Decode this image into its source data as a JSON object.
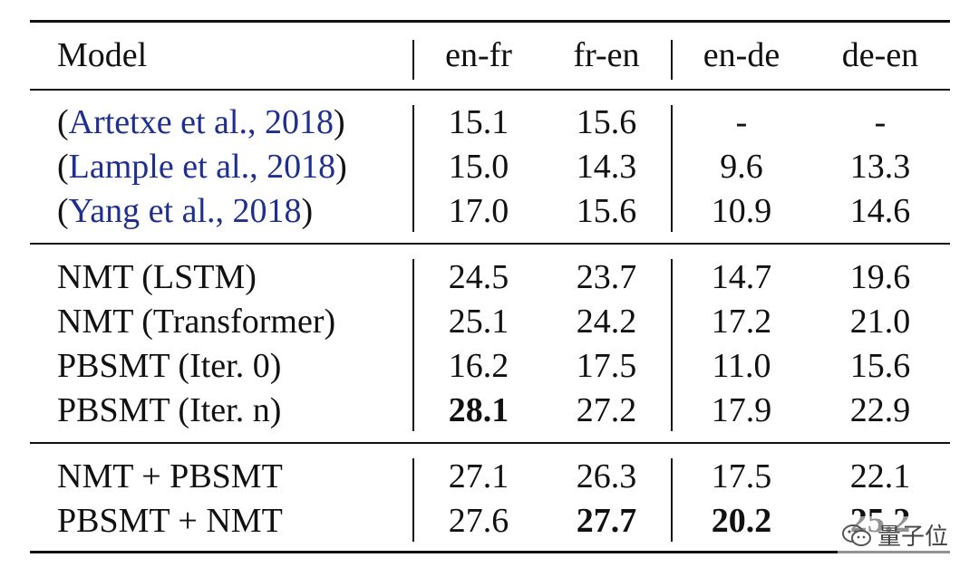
{
  "table": {
    "header": {
      "model": "Model",
      "columns": [
        "en-fr",
        "fr-en",
        "en-de",
        "de-en"
      ]
    },
    "groups": [
      {
        "rows": [
          {
            "prefix": "(",
            "model": "Artetxe et al., 2018",
            "suffix": ")",
            "values": [
              "15.1",
              "15.6",
              "-",
              "-"
            ]
          },
          {
            "prefix": "(",
            "model": "Lample et al., 2018",
            "suffix": ")",
            "values": [
              "15.0",
              "14.3",
              "9.6",
              "13.3"
            ]
          },
          {
            "prefix": "(",
            "model": "Yang et al., 2018",
            "suffix": ")",
            "values": [
              "17.0",
              "15.6",
              "10.9",
              "14.6"
            ]
          }
        ]
      },
      {
        "rows": [
          {
            "model": "NMT (LSTM)",
            "values": [
              "24.5",
              "23.7",
              "14.7",
              "19.6"
            ]
          },
          {
            "model": "NMT (Transformer)",
            "values": [
              "25.1",
              "24.2",
              "17.2",
              "21.0"
            ]
          },
          {
            "model": "PBSMT (Iter. 0)",
            "values": [
              "16.2",
              "17.5",
              "11.0",
              "15.6"
            ]
          },
          {
            "model": "PBSMT (Iter. n)",
            "values": [
              "28.1",
              "27.2",
              "17.9",
              "22.9"
            ]
          }
        ]
      },
      {
        "rows": [
          {
            "model": "NMT + PBSMT",
            "values": [
              "27.1",
              "26.3",
              "17.5",
              "22.1"
            ]
          },
          {
            "model": "PBSMT + NMT",
            "values": [
              "27.6",
              "27.7",
              "20.2",
              "25.2"
            ]
          }
        ]
      }
    ]
  },
  "watermark": {
    "text": "量子位",
    "icon": "wechat-bubble-icon"
  },
  "colors": {
    "citation": "#1f2f8f",
    "text": "#111111"
  }
}
